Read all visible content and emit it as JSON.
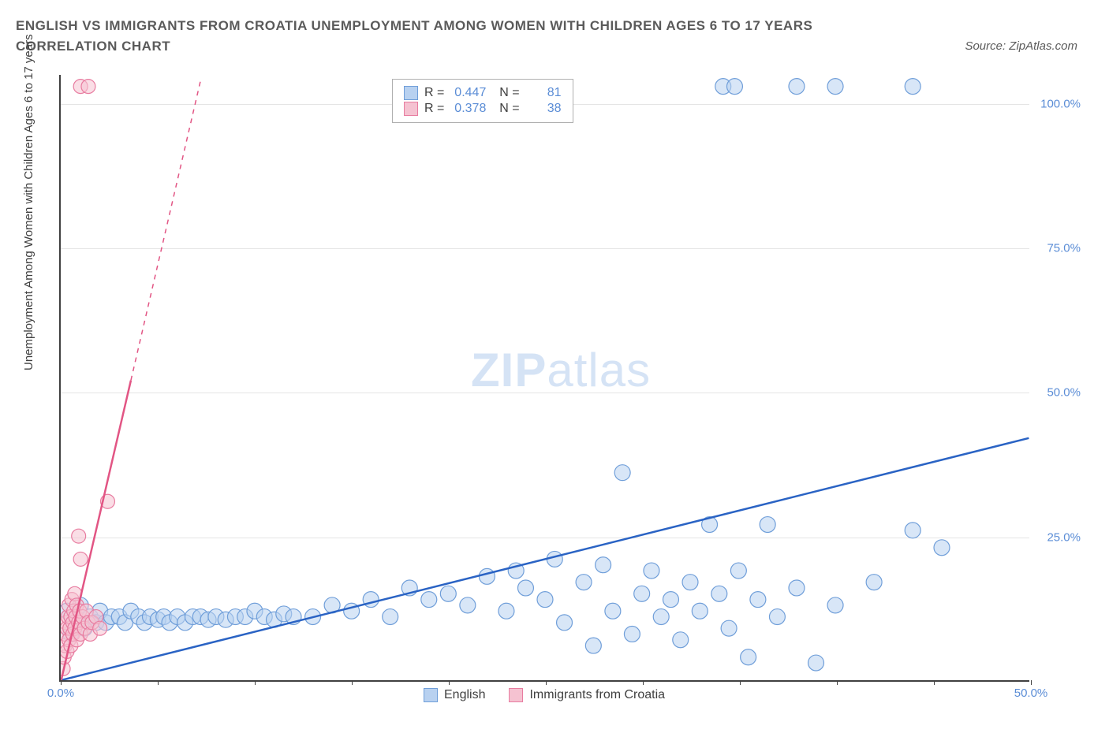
{
  "title": "ENGLISH VS IMMIGRANTS FROM CROATIA UNEMPLOYMENT AMONG WOMEN WITH CHILDREN AGES 6 TO 17 YEARS CORRELATION CHART",
  "source": "Source: ZipAtlas.com",
  "y_axis_label": "Unemployment Among Women with Children Ages 6 to 17 years",
  "watermark_zip": "ZIP",
  "watermark_atlas": "atlas",
  "chart": {
    "type": "scatter",
    "xlim": [
      0,
      50
    ],
    "ylim": [
      0,
      105
    ],
    "x_ticks": [
      0,
      5,
      10,
      15,
      20,
      25,
      30,
      35,
      40,
      45,
      50
    ],
    "x_tick_labels": {
      "0": "0.0%",
      "50": "50.0%"
    },
    "y_ticks": [
      25,
      50,
      75,
      100
    ],
    "y_tick_labels": {
      "25": "25.0%",
      "50": "50.0%",
      "75": "75.0%",
      "100": "100.0%"
    },
    "grid_color": "#e5e5e5",
    "axis_color": "#404040",
    "tick_label_color": "#5b8dd6",
    "background_color": "#ffffff",
    "marker_radius": 10,
    "marker_opacity": 0.55,
    "line_width": 2.5
  },
  "series": {
    "english": {
      "label": "English",
      "R": "0.447",
      "N": "81",
      "fill": "#b8d1f0",
      "stroke": "#6f9ed9",
      "line_color": "#2a63c4",
      "trend": {
        "x1": 0,
        "y1": 0,
        "x2": 50,
        "y2": 42
      },
      "points": [
        [
          0.3,
          12
        ],
        [
          0.5,
          8
        ],
        [
          0.8,
          10
        ],
        [
          1.0,
          13
        ],
        [
          1.2,
          9
        ],
        [
          1.5,
          11
        ],
        [
          1.8,
          10
        ],
        [
          2.0,
          12
        ],
        [
          2.3,
          10
        ],
        [
          2.6,
          11
        ],
        [
          3.0,
          11
        ],
        [
          3.3,
          10
        ],
        [
          3.6,
          12
        ],
        [
          4.0,
          11
        ],
        [
          4.3,
          10
        ],
        [
          4.6,
          11
        ],
        [
          5.0,
          10.5
        ],
        [
          5.3,
          11
        ],
        [
          5.6,
          10
        ],
        [
          6.0,
          11
        ],
        [
          6.4,
          10
        ],
        [
          6.8,
          11
        ],
        [
          7.2,
          11
        ],
        [
          7.6,
          10.5
        ],
        [
          8.0,
          11
        ],
        [
          8.5,
          10.5
        ],
        [
          9.0,
          11
        ],
        [
          9.5,
          11
        ],
        [
          10.0,
          12
        ],
        [
          10.5,
          11
        ],
        [
          11.0,
          10.5
        ],
        [
          11.5,
          11.5
        ],
        [
          12.0,
          11
        ],
        [
          13.0,
          11
        ],
        [
          14.0,
          13
        ],
        [
          15.0,
          12
        ],
        [
          16.0,
          14
        ],
        [
          17.0,
          11
        ],
        [
          18.0,
          16
        ],
        [
          19.0,
          14
        ],
        [
          20.0,
          15
        ],
        [
          21.0,
          13
        ],
        [
          22.0,
          18
        ],
        [
          23.0,
          12
        ],
        [
          23.5,
          19
        ],
        [
          24.0,
          16
        ],
        [
          25.0,
          14
        ],
        [
          25.5,
          21
        ],
        [
          26.0,
          10
        ],
        [
          27.0,
          17
        ],
        [
          27.5,
          6
        ],
        [
          28.0,
          20
        ],
        [
          28.5,
          12
        ],
        [
          29.0,
          36
        ],
        [
          29.5,
          8
        ],
        [
          30.0,
          15
        ],
        [
          30.5,
          19
        ],
        [
          31.0,
          11
        ],
        [
          31.5,
          14
        ],
        [
          32.0,
          7
        ],
        [
          32.5,
          17
        ],
        [
          33.0,
          12
        ],
        [
          33.5,
          27
        ],
        [
          34.0,
          15
        ],
        [
          34.5,
          9
        ],
        [
          35.0,
          19
        ],
        [
          35.5,
          4
        ],
        [
          36.0,
          14
        ],
        [
          36.5,
          27
        ],
        [
          37.0,
          11
        ],
        [
          38.0,
          16
        ],
        [
          39.0,
          3
        ],
        [
          40.0,
          13
        ],
        [
          42.0,
          17
        ],
        [
          44.0,
          26
        ],
        [
          45.5,
          23
        ],
        [
          34.2,
          103
        ],
        [
          34.8,
          103
        ],
        [
          38.0,
          103
        ],
        [
          40.0,
          103
        ],
        [
          44.0,
          103
        ]
      ]
    },
    "croatia": {
      "label": "Immigrants from Croatia",
      "R": "0.378",
      "N": "38",
      "fill": "#f5c2d1",
      "stroke": "#e87ca0",
      "line_color": "#e25584",
      "trend_solid": {
        "x1": 0,
        "y1": 0,
        "x2": 3.6,
        "y2": 52
      },
      "trend_dash": {
        "x1": 3.6,
        "y1": 52,
        "x2": 7.2,
        "y2": 104
      },
      "points": [
        [
          0.1,
          2
        ],
        [
          0.15,
          4
        ],
        [
          0.2,
          6
        ],
        [
          0.2,
          8
        ],
        [
          0.25,
          10
        ],
        [
          0.3,
          5
        ],
        [
          0.3,
          9
        ],
        [
          0.35,
          11
        ],
        [
          0.4,
          7
        ],
        [
          0.4,
          13
        ],
        [
          0.45,
          9
        ],
        [
          0.5,
          11
        ],
        [
          0.5,
          6
        ],
        [
          0.55,
          14
        ],
        [
          0.6,
          10
        ],
        [
          0.6,
          8
        ],
        [
          0.65,
          12
        ],
        [
          0.7,
          9
        ],
        [
          0.7,
          15
        ],
        [
          0.75,
          11
        ],
        [
          0.8,
          7
        ],
        [
          0.8,
          13
        ],
        [
          0.9,
          10
        ],
        [
          0.9,
          25
        ],
        [
          0.95,
          12
        ],
        [
          1.0,
          8
        ],
        [
          1.0,
          21
        ],
        [
          1.1,
          11
        ],
        [
          1.2,
          9
        ],
        [
          1.3,
          12
        ],
        [
          1.4,
          10
        ],
        [
          1.5,
          8
        ],
        [
          1.6,
          10
        ],
        [
          1.8,
          11
        ],
        [
          2.0,
          9
        ],
        [
          2.4,
          31
        ],
        [
          1.0,
          103
        ],
        [
          1.4,
          103
        ]
      ]
    }
  },
  "legend": [
    {
      "key": "english",
      "label": "English"
    },
    {
      "key": "croatia",
      "label": "Immigrants from Croatia"
    }
  ]
}
